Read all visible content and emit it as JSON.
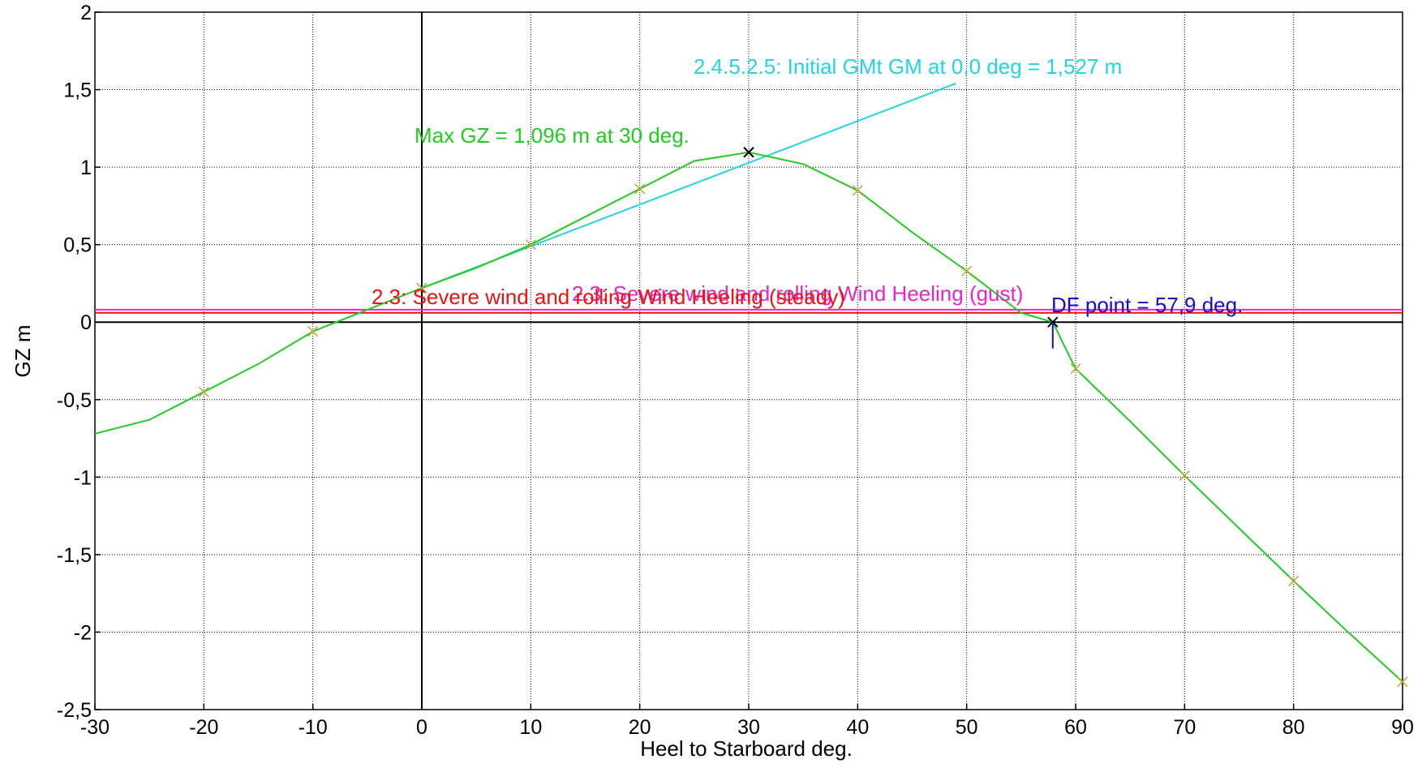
{
  "chart_data": {
    "type": "line",
    "xlabel": "Heel to Starboard   deg.",
    "ylabel": "GZ  m",
    "xlim": [
      -30,
      90
    ],
    "ylim": [
      -2.5,
      2
    ],
    "grid": true,
    "x_ticks": [
      -30,
      -20,
      -10,
      0,
      10,
      20,
      30,
      40,
      50,
      60,
      70,
      80,
      90
    ],
    "x_tick_labels": [
      "-30",
      "-20",
      "-10",
      "0",
      "10",
      "20",
      "30",
      "40",
      "50",
      "60",
      "70",
      "80",
      "90"
    ],
    "y_ticks": [
      2,
      1.5,
      1,
      0.5,
      0,
      -0.5,
      -1,
      -1.5,
      -2,
      -2.5
    ],
    "y_tick_labels": [
      "2",
      "1,5",
      "1",
      "0,5",
      "0",
      "-0,5",
      "-1",
      "-1,5",
      "-2",
      "-2,5"
    ],
    "series": [
      {
        "color": "#22cc22",
        "x": [
          -30,
          -25,
          -20,
          -15,
          -10,
          -5,
          0,
          5,
          10,
          15,
          20,
          25,
          30,
          35,
          40,
          45,
          50,
          55,
          57.9,
          60,
          65,
          70,
          75,
          80,
          85,
          90
        ],
        "y": [
          -0.72,
          -0.63,
          -0.45,
          -0.27,
          -0.06,
          0.08,
          0.22,
          0.35,
          0.5,
          0.68,
          0.86,
          1.04,
          1.096,
          1.02,
          0.85,
          0.58,
          0.33,
          0.06,
          0.0,
          -0.3,
          -0.64,
          -0.99,
          -1.33,
          -1.67,
          -2.0,
          -2.32
        ]
      }
    ],
    "markers": [
      {
        "x": -20,
        "y": -0.45
      },
      {
        "x": -10,
        "y": -0.06
      },
      {
        "x": 0,
        "y": 0.22
      },
      {
        "x": 10,
        "y": 0.5
      },
      {
        "x": 20,
        "y": 0.86
      },
      {
        "x": 40,
        "y": 0.85
      },
      {
        "x": 50,
        "y": 0.33
      },
      {
        "x": 60,
        "y": -0.3
      },
      {
        "x": 70,
        "y": -0.99
      },
      {
        "x": 80,
        "y": -1.67
      },
      {
        "x": 90,
        "y": -2.32
      }
    ],
    "marker_color": "#b8a838",
    "initial_gm_line": {
      "color": "#22d4e6",
      "x": [
        0,
        49
      ],
      "y": [
        0.22,
        1.54
      ],
      "label": "2.4.5.2.5: Initial GMt GM at 0,0 deg = 1,527 m"
    },
    "heeling_lines": [
      {
        "label": "2.3: Severe wind and rolling Wind Heeling (steady)",
        "color": "#ee1111",
        "y": 0.06
      },
      {
        "label": "2.3: Severe wind and rolling Wind Heeling (gust)",
        "color": "#ee22cc",
        "y": 0.08
      }
    ],
    "annotations": {
      "max_gz": {
        "text": "Max GZ = 1,096 m at 30 deg.",
        "color": "#22cc22",
        "x": 30,
        "y": 1.096
      },
      "df_point": {
        "text": "DF point = 57,9 deg.",
        "color": "#1111cc",
        "x": 57.9,
        "y": 0.0
      }
    }
  }
}
